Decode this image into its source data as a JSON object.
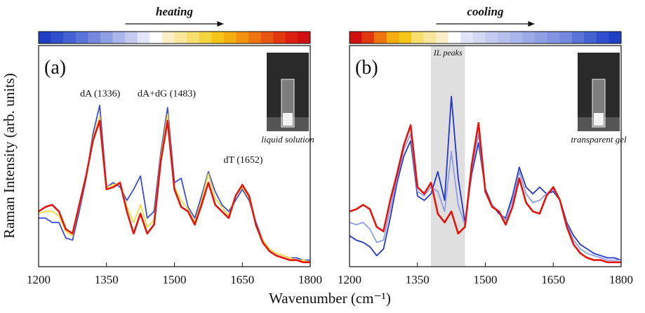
{
  "chart_data": [
    {
      "type": "line",
      "panel_label": "(a)",
      "process": "heating",
      "photo_caption": "liquid solution",
      "annotations": [
        {
          "text": "dA (1336)",
          "x": 1336,
          "y": 77
        },
        {
          "text": "dA+dG (1483)",
          "x": 1483,
          "y": 77
        },
        {
          "text": "dT (1652)",
          "x": 1652,
          "y": 47
        }
      ],
      "colorbar": [
        "#1f3fc4",
        "#2f4fcc",
        "#4462d2",
        "#5a75d8",
        "#7489de",
        "#8f9fe4",
        "#aab5ea",
        "#c5cbf0",
        "#e2e4f7",
        "#ffffff",
        "#fbefc8",
        "#f8e79a",
        "#f6df6c",
        "#f5d53f",
        "#f5c518",
        "#f5ad10",
        "#f39210",
        "#ee7410",
        "#e85510",
        "#e23810",
        "#dc1e10",
        "#d00f10"
      ],
      "x": [
        1200,
        1215,
        1230,
        1245,
        1260,
        1275,
        1290,
        1305,
        1320,
        1335,
        1350,
        1365,
        1380,
        1395,
        1410,
        1425,
        1440,
        1455,
        1470,
        1485,
        1500,
        1515,
        1530,
        1545,
        1560,
        1575,
        1590,
        1605,
        1620,
        1635,
        1650,
        1665,
        1680,
        1695,
        1710,
        1725,
        1740,
        1755,
        1770,
        1785,
        1800
      ],
      "xlim": [
        1200,
        1800
      ],
      "xticks": [
        1200,
        1350,
        1500,
        1650,
        1800
      ],
      "ylim": [
        0,
        100
      ],
      "series": [
        {
          "color": "#3a4fd4",
          "values": [
            22,
            22,
            20,
            20,
            13,
            12,
            25,
            40,
            60,
            73,
            36,
            38,
            36,
            30,
            35,
            41,
            22,
            25,
            52,
            72,
            38,
            40,
            27,
            22,
            32,
            43,
            34,
            28,
            25,
            30,
            35,
            30,
            20,
            12,
            8,
            6,
            5,
            4,
            4,
            3,
            3
          ]
        },
        {
          "color": "#f3dc3c",
          "values": [
            24,
            25,
            25,
            23,
            16,
            14,
            27,
            41,
            58,
            68,
            36,
            37,
            38,
            27,
            20,
            28,
            18,
            21,
            50,
            69,
            36,
            30,
            26,
            20,
            30,
            42,
            31,
            27,
            23,
            32,
            36,
            31,
            19,
            12,
            8,
            6,
            5,
            4,
            3,
            3,
            2
          ]
        },
        {
          "color": "#e2140c",
          "values": [
            25,
            27,
            28,
            25,
            17,
            15,
            28,
            41,
            57,
            66,
            35,
            36,
            38,
            25,
            15,
            24,
            15,
            19,
            48,
            66,
            35,
            27,
            25,
            19,
            28,
            38,
            28,
            25,
            22,
            32,
            37,
            32,
            19,
            11,
            7,
            5,
            4,
            3,
            3,
            2,
            2
          ]
        }
      ]
    },
    {
      "type": "line",
      "panel_label": "(b)",
      "process": "cooling",
      "photo_caption": "transparent gel",
      "shade": [
        1380,
        1455
      ],
      "shade_label": "IL peaks",
      "colorbar": [
        "#d00f10",
        "#e23810",
        "#ee7410",
        "#f5ad10",
        "#f5c518",
        "#f6df6c",
        "#f8e79a",
        "#fbefc8",
        "#ffffff",
        "#e2e4f7",
        "#d3d8f3",
        "#c5cbf0",
        "#b7c0ed",
        "#aab5ea",
        "#9caaE7",
        "#8f9fe4",
        "#8294e1",
        "#7489de",
        "#5a75d8",
        "#4462d2",
        "#2f4fcc",
        "#1f3fc4"
      ],
      "x": [
        1200,
        1215,
        1230,
        1245,
        1260,
        1275,
        1290,
        1305,
        1320,
        1335,
        1350,
        1365,
        1380,
        1395,
        1410,
        1425,
        1440,
        1455,
        1470,
        1485,
        1500,
        1515,
        1530,
        1545,
        1560,
        1575,
        1590,
        1605,
        1620,
        1635,
        1650,
        1665,
        1680,
        1695,
        1710,
        1725,
        1740,
        1755,
        1770,
        1785,
        1800
      ],
      "xlim": [
        1200,
        1800
      ],
      "xticks": [
        1200,
        1350,
        1500,
        1650,
        1800
      ],
      "ylim": [
        0,
        100
      ],
      "series": [
        {
          "color": "#2438c0",
          "values": [
            14,
            12,
            11,
            9,
            5,
            8,
            22,
            38,
            50,
            57,
            32,
            30,
            33,
            43,
            30,
            77,
            40,
            20,
            42,
            56,
            35,
            28,
            24,
            22,
            32,
            45,
            36,
            33,
            36,
            33,
            34,
            30,
            20,
            14,
            10,
            8,
            6,
            5,
            4,
            4,
            3
          ]
        },
        {
          "color": "#8e9ee6",
          "values": [
            20,
            19,
            20,
            17,
            11,
            12,
            26,
            40,
            53,
            60,
            34,
            32,
            36,
            34,
            25,
            52,
            28,
            19,
            44,
            60,
            34,
            28,
            25,
            21,
            30,
            43,
            33,
            29,
            30,
            33,
            35,
            30,
            19,
            12,
            8,
            6,
            5,
            4,
            3,
            3,
            3
          ]
        },
        {
          "color": "#e2140c",
          "values": [
            25,
            26,
            28,
            26,
            18,
            16,
            30,
            42,
            55,
            64,
            36,
            33,
            38,
            24,
            20,
            25,
            15,
            18,
            46,
            65,
            34,
            27,
            25,
            19,
            27,
            40,
            29,
            25,
            24,
            32,
            36,
            30,
            18,
            10,
            6,
            4,
            3,
            3,
            2,
            2,
            2
          ]
        }
      ]
    }
  ],
  "y_label": "Raman Intensity (arb. units)",
  "x_label": "Wavenumber (cm⁻¹)"
}
